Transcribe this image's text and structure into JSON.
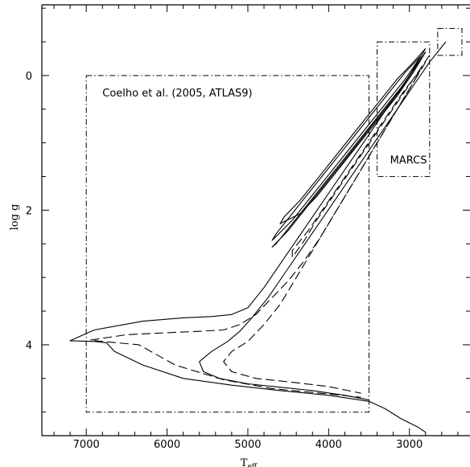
{
  "chart_data": {
    "type": "line",
    "xlabel_main": "T",
    "xlabel_sub": "eff",
    "ylabel": "log g",
    "xlim": [
      7550,
      2250
    ],
    "ylim": [
      -1.05,
      5.35
    ],
    "x_ticks_major": [
      7000,
      6000,
      5000,
      4000,
      3000
    ],
    "x_tick_labels": [
      "7000",
      "6000",
      "5000",
      "4000",
      "3000"
    ],
    "y_ticks_major": [
      0,
      2,
      4
    ],
    "y_tick_labels": [
      "0",
      "2",
      "4"
    ],
    "grid": false,
    "legend": "none",
    "annotations": [
      {
        "text": "Coelho et al. (2005, ATLAS9)",
        "x": 6800,
        "y": 0.25
      },
      {
        "text": "MARCS",
        "x": 3240,
        "y": 1.25
      }
    ],
    "regions": [
      {
        "name": "Coelho et al. (2005, ATLAS9)",
        "x": [
          7000,
          3500
        ],
        "y": [
          0.0,
          5.0
        ]
      },
      {
        "name": "MARCS",
        "x": [
          3400,
          2750
        ],
        "y": [
          -0.5,
          1.5
        ]
      },
      {
        "name": "",
        "x": [
          2650,
          2350
        ],
        "y": [
          -0.7,
          -0.3
        ]
      }
    ],
    "series": [
      {
        "style": "solid",
        "x": [
          2800,
          2950,
          3100,
          3300,
          3500,
          3700,
          3900,
          4100,
          4300,
          4500,
          4700,
          4650,
          4450,
          4250,
          4050,
          3850,
          3650,
          3450,
          3250,
          3050,
          2800
        ],
        "y": [
          -0.4,
          -0.1,
          0.2,
          0.5,
          0.8,
          1.1,
          1.4,
          1.7,
          2.0,
          2.3,
          2.55,
          2.5,
          2.2,
          1.9,
          1.6,
          1.3,
          1.0,
          0.7,
          0.4,
          0.1,
          -0.35
        ]
      },
      {
        "style": "solid",
        "x": [
          2800,
          2950,
          3150,
          3350,
          3550,
          3750,
          3950,
          4150,
          4350,
          4600,
          4550,
          4350,
          4150,
          3950,
          3750,
          3550,
          3350,
          3150,
          2950,
          2800
        ],
        "y": [
          -0.35,
          -0.05,
          0.3,
          0.6,
          0.9,
          1.2,
          1.5,
          1.8,
          2.05,
          2.2,
          2.1,
          1.85,
          1.55,
          1.25,
          0.95,
          0.65,
          0.35,
          0.05,
          -0.2,
          -0.4
        ]
      },
      {
        "style": "solid",
        "x": [
          2850,
          3050,
          3250,
          3450,
          3650,
          3850,
          4050,
          4250,
          4450,
          4700,
          4650,
          4450,
          4250,
          4050,
          3850,
          3650,
          3450,
          3250,
          3050,
          2850
        ],
        "y": [
          -0.3,
          0.05,
          0.35,
          0.65,
          0.95,
          1.25,
          1.55,
          1.85,
          2.15,
          2.45,
          2.35,
          2.05,
          1.75,
          1.45,
          1.15,
          0.85,
          0.55,
          0.25,
          -0.05,
          -0.3
        ]
      },
      {
        "style": "solid",
        "x": [
          2550,
          2750,
          2950,
          3150,
          3350,
          3550,
          3750,
          3950,
          4150,
          4350,
          4550,
          4750,
          4950,
          5100,
          5250,
          5450,
          5600,
          5550,
          5350,
          5000,
          4600,
          4200,
          3800,
          3500
        ],
        "y": [
          -0.5,
          -0.2,
          0.15,
          0.5,
          0.85,
          1.2,
          1.55,
          1.9,
          2.25,
          2.6,
          2.95,
          3.3,
          3.6,
          3.8,
          3.95,
          4.1,
          4.25,
          4.4,
          4.5,
          4.58,
          4.63,
          4.68,
          4.75,
          4.82
        ]
      },
      {
        "style": "solid",
        "x": [
          2800,
          3000,
          3200,
          3400,
          3600,
          3800,
          4000,
          4200,
          4400,
          4600,
          4800,
          5000,
          5200,
          5450,
          5800,
          6300,
          6900,
          7200,
          6900,
          6750,
          6650,
          6300,
          5800,
          5200,
          4600,
          4000,
          3500,
          3300,
          3100,
          2900,
          2800
        ],
        "y": [
          -0.35,
          0.0,
          0.35,
          0.7,
          1.05,
          1.4,
          1.75,
          2.1,
          2.45,
          2.8,
          3.15,
          3.45,
          3.55,
          3.58,
          3.6,
          3.65,
          3.78,
          3.94,
          3.95,
          3.97,
          4.1,
          4.3,
          4.5,
          4.6,
          4.68,
          4.75,
          4.84,
          4.95,
          5.1,
          5.22,
          5.3
        ]
      },
      {
        "style": "dashed",
        "x": [
          2750,
          2950,
          3150,
          3350,
          3550,
          3750,
          3950,
          4150,
          4300,
          4450,
          4450,
          4250,
          4050,
          3850,
          3650,
          3450,
          3250,
          3050,
          2850
        ],
        "y": [
          -0.3,
          0.05,
          0.4,
          0.75,
          1.1,
          1.45,
          1.8,
          2.15,
          2.45,
          2.7,
          2.6,
          2.3,
          1.95,
          1.6,
          1.25,
          0.9,
          0.55,
          0.2,
          -0.1
        ]
      },
      {
        "style": "dashed",
        "x": [
          2800,
          3000,
          3200,
          3400,
          3600,
          3800,
          4000,
          4200,
          4400,
          4600,
          4800,
          5000,
          5200,
          5300,
          5200,
          4900,
          4500,
          4000,
          3600
        ],
        "y": [
          -0.2,
          0.2,
          0.6,
          1.0,
          1.4,
          1.8,
          2.2,
          2.6,
          3.0,
          3.4,
          3.7,
          3.95,
          4.1,
          4.25,
          4.4,
          4.5,
          4.55,
          4.62,
          4.72
        ]
      },
      {
        "style": "dashed",
        "x": [
          2900,
          3100,
          3300,
          3500,
          3700,
          3900,
          4100,
          4300,
          4500,
          4700,
          4900,
          5100,
          5300,
          5600,
          6000,
          6500,
          6950,
          6800,
          6350,
          5900,
          5300,
          4700,
          4100,
          3600
        ],
        "y": [
          0.0,
          0.4,
          0.8,
          1.2,
          1.6,
          2.0,
          2.4,
          2.75,
          3.05,
          3.3,
          3.55,
          3.7,
          3.78,
          3.8,
          3.82,
          3.85,
          3.93,
          3.95,
          4.0,
          4.3,
          4.52,
          4.65,
          4.72,
          4.78
        ]
      }
    ]
  }
}
